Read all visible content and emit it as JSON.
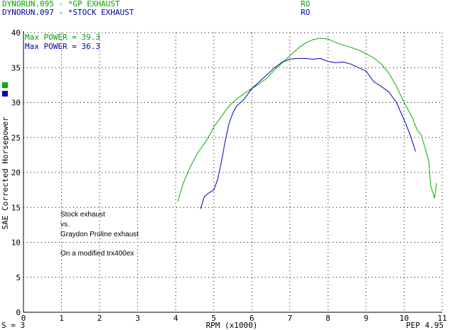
{
  "header": {
    "run1": "DYNORUN.095 - *GP EXHAUST",
    "run2": "DYNORUN.097 - *STOCK EXHAUST",
    "ro1": "RO",
    "ro2": "RO"
  },
  "notes": {
    "line1": "Stock exhaust",
    "line2": "vs.",
    "line3": "Graydon Proline exhaust",
    "line4": "On a modified trx400ex"
  },
  "footer": {
    "smoothing": "S = 3",
    "pep": "PEP 4.95"
  },
  "colors": {
    "gp": "#00b000",
    "stock": "#0000c0",
    "gp_text": "#00a000",
    "stock_text": "#0000a0"
  },
  "chart_data": {
    "type": "line",
    "xlabel": "RPM (x1000)",
    "ylabel": "SAE Corrected Horsepower",
    "xlim": [
      0,
      11
    ],
    "ylim": [
      0,
      40
    ],
    "xticks": [
      "0",
      "1",
      "2",
      "3",
      "4",
      "5",
      "6",
      "7",
      "8",
      "9",
      "10",
      "11"
    ],
    "yticks": [
      "0",
      "5",
      "10",
      "15",
      "20",
      "25",
      "30",
      "35",
      "40"
    ],
    "grid": true,
    "max_power": [
      {
        "label": "Max POWER = 39.3"
      },
      {
        "label": "Max POWER = 36.3"
      }
    ],
    "series": [
      {
        "x": [
          4.05,
          4.2,
          4.4,
          4.6,
          4.8,
          5.0,
          5.2,
          5.4,
          5.6,
          5.8,
          6.0,
          6.2,
          6.4,
          6.6,
          6.8,
          7.0,
          7.2,
          7.4,
          7.6,
          7.8,
          8.0,
          8.2,
          8.4,
          8.6,
          8.8,
          9.0,
          9.2,
          9.4,
          9.6,
          9.8,
          10.0,
          10.2,
          10.35,
          10.45,
          10.55,
          10.65,
          10.7,
          10.75,
          10.8,
          10.85
        ],
        "values": [
          15.8,
          18.5,
          21.0,
          23.0,
          24.5,
          26.5,
          28.0,
          29.5,
          30.5,
          31.3,
          32.0,
          32.7,
          33.5,
          34.7,
          35.7,
          36.7,
          37.7,
          38.5,
          39.0,
          39.2,
          39.1,
          38.6,
          38.2,
          37.9,
          37.5,
          37.0,
          36.4,
          35.5,
          34.2,
          32.3,
          30.0,
          28.0,
          26.0,
          25.4,
          23.5,
          21.5,
          18.0,
          17.2,
          16.3,
          18.5
        ]
      },
      {
        "x": [
          4.65,
          4.75,
          4.85,
          5.0,
          5.1,
          5.2,
          5.3,
          5.4,
          5.5,
          5.6,
          5.8,
          6.0,
          6.2,
          6.4,
          6.6,
          6.8,
          7.0,
          7.2,
          7.4,
          7.6,
          7.8,
          8.0,
          8.2,
          8.4,
          8.6,
          8.8,
          9.0,
          9.2,
          9.4,
          9.6,
          9.8,
          10.0,
          10.15,
          10.3
        ],
        "values": [
          14.8,
          16.5,
          17.0,
          17.5,
          19.0,
          21.5,
          24.5,
          27.0,
          28.5,
          29.5,
          30.5,
          32.0,
          33.0,
          34.0,
          35.0,
          35.8,
          36.2,
          36.3,
          36.3,
          36.2,
          36.3,
          35.9,
          35.7,
          35.8,
          35.5,
          35.0,
          34.5,
          33.0,
          32.3,
          31.5,
          30.0,
          27.5,
          25.5,
          23.0
        ]
      }
    ]
  }
}
